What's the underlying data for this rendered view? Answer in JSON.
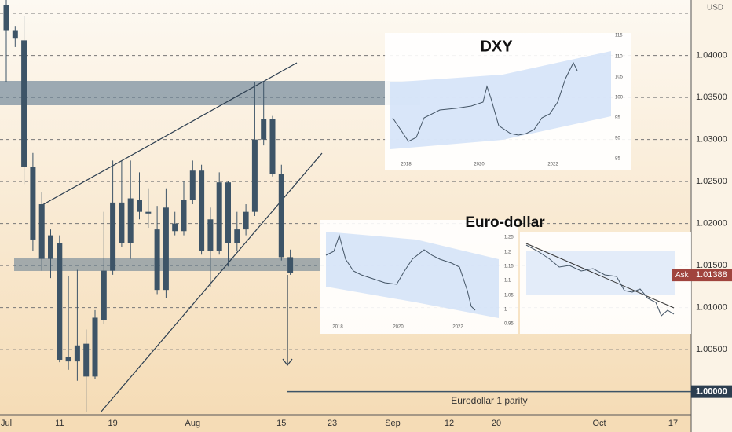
{
  "chart_data": {
    "type": "candlestick",
    "currency": "USD",
    "color": "#3d5467",
    "categories": [
      "Jul",
      null,
      null,
      null,
      null,
      null,
      "11",
      null,
      null,
      null,
      null,
      null,
      "19",
      null,
      null,
      null,
      null,
      null,
      null,
      null,
      null,
      "Aug",
      null,
      null,
      null,
      null,
      null,
      null,
      null,
      null,
      null,
      "15",
      null
    ],
    "future_dates": [
      "23",
      "Sep",
      "12",
      "20",
      "Oct",
      "17"
    ],
    "open": [
      1.046,
      1.043,
      1.0418,
      1.0267,
      1.0158,
      1.0186,
      1.0177,
      1.0041,
      1.0036,
      1.0057,
      1.0018,
      1.0085,
      1.0144,
      1.0225,
      1.0177,
      1.0228,
      1.0214,
      1.0193,
      1.0121,
      1.02,
      1.0191,
      1.0228,
      1.0263,
      1.0167,
      1.0167,
      1.0249,
      1.0177,
      1.0193,
      1.0214,
      1.03,
      1.0324,
      1.0259,
      1.016
    ],
    "high": [
      1.0466,
      1.0435,
      1.0447,
      1.0284,
      1.0237,
      1.0193,
      1.0186,
      1.0138,
      1.0145,
      1.0074,
      1.0097,
      1.0214,
      1.0275,
      1.0275,
      1.0275,
      1.0261,
      1.0242,
      1.0221,
      1.0242,
      1.0214,
      1.0251,
      1.0275,
      1.027,
      1.0219,
      1.0261,
      1.0251,
      1.0214,
      1.0223,
      1.0368,
      1.0368,
      1.0328,
      1.027,
      1.0169
    ],
    "low": [
      1.0368,
      1.041,
      1.0247,
      1.0167,
      1.0144,
      1.0135,
      1.0035,
      1.0026,
      1.0013,
      0.9976,
      1.0015,
      1.0081,
      1.0139,
      1.0172,
      1.0158,
      1.0205,
      1.0195,
      1.0116,
      1.0111,
      1.0186,
      1.0186,
      1.0223,
      1.0163,
      1.0125,
      1.0163,
      1.0149,
      1.0167,
      1.0186,
      1.0209,
      1.0293,
      1.0256,
      1.0156,
      1.0139
    ],
    "close": [
      1.043,
      1.042,
      1.0267,
      1.0181,
      1.0223,
      1.0158,
      1.0038,
      1.0036,
      1.0055,
      1.0018,
      1.0088,
      1.0144,
      1.0225,
      1.0177,
      1.023,
      1.0214,
      1.0212,
      1.0121,
      1.0219,
      1.0191,
      1.0228,
      1.0263,
      1.0167,
      1.0205,
      1.0249,
      1.0177,
      1.0193,
      1.0214,
      1.03,
      1.0324,
      1.0259,
      1.016,
      1.0141
    ],
    "ylim": [
      0.9952,
      1.0466
    ],
    "yticks": [
      {
        "value": 1.005,
        "label": "1.00500"
      },
      {
        "value": 1.01,
        "label": "1.01000"
      },
      {
        "value": 1.015,
        "label": "1.01500"
      },
      {
        "value": 1.02,
        "label": "1.02000"
      },
      {
        "value": 1.025,
        "label": "1.02500"
      },
      {
        "value": 1.03,
        "label": "1.03000"
      },
      {
        "value": 1.035,
        "label": "1.03500"
      },
      {
        "value": 1.04,
        "label": "1.04000"
      }
    ],
    "grid": true,
    "ask": {
      "name": "Ask",
      "value": 1.01388
    },
    "parity": {
      "value": 1,
      "label": "1.00000",
      "text": "Eurodollar 1 parity"
    }
  },
  "insets": {
    "dxy": {
      "title": "DXY",
      "yticks": [
        "115",
        "110",
        "105",
        "100",
        "95",
        "90",
        "85"
      ],
      "xticks": [
        "2018",
        "2020",
        "2022"
      ]
    },
    "eurusd": {
      "title": "Euro-dollar",
      "yticks": [
        "1.25",
        "1.2",
        "1.15",
        "1.1",
        "1.05",
        "1",
        "0.95"
      ],
      "xticks": [
        "2018",
        "2020",
        "2022"
      ]
    }
  }
}
